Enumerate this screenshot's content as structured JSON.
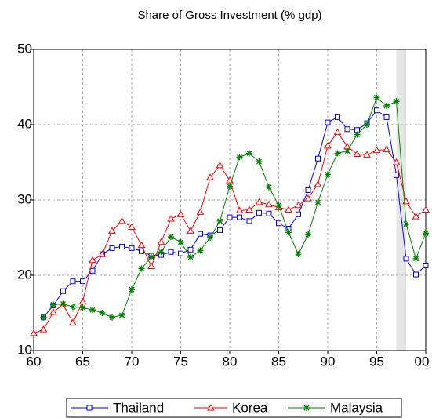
{
  "chart_data": {
    "type": "line",
    "title": "Share of Gross Investment (% gdp)",
    "x": [
      1960,
      1961,
      1962,
      1963,
      1964,
      1965,
      1966,
      1967,
      1968,
      1969,
      1970,
      1971,
      1972,
      1973,
      1974,
      1975,
      1976,
      1977,
      1978,
      1979,
      1980,
      1981,
      1982,
      1983,
      1984,
      1985,
      1986,
      1987,
      1988,
      1989,
      1990,
      1991,
      1992,
      1993,
      1994,
      1995,
      1996,
      1997,
      1998,
      1999,
      2000
    ],
    "series": [
      {
        "name": "Thailand",
        "color": "#0000ff",
        "marker": "square",
        "values": [
          null,
          14.4,
          16.0,
          17.9,
          19.2,
          19.2,
          20.6,
          22.8,
          23.6,
          23.8,
          23.6,
          23.2,
          22.6,
          22.7,
          23.1,
          22.9,
          23.4,
          25.5,
          25.3,
          26.0,
          27.7,
          27.7,
          27.2,
          28.3,
          28.2,
          26.9,
          26.2,
          28.1,
          31.3,
          35.5,
          40.3,
          41.0,
          39.4,
          39.3,
          40.2,
          41.9,
          41.0,
          33.3,
          22.2,
          20.1,
          21.3
        ]
      },
      {
        "name": "Korea",
        "color": "#ff0000",
        "marker": "triangle",
        "values": [
          12.3,
          12.8,
          15.1,
          16.1,
          13.7,
          16.5,
          22.0,
          22.8,
          25.9,
          27.2,
          26.4,
          24.0,
          21.2,
          24.4,
          27.5,
          28.1,
          25.9,
          28.4,
          33.0,
          34.6,
          32.6,
          28.6,
          28.7,
          29.7,
          29.4,
          29.0,
          28.7,
          29.3,
          30.2,
          32.1,
          37.2,
          39.0,
          37.1,
          36.1,
          36.0,
          36.6,
          36.7,
          35.0,
          29.8,
          27.8,
          28.7
        ]
      },
      {
        "name": "Malaysia",
        "color": "#008000",
        "marker": "star",
        "values": [
          null,
          14.4,
          16.1,
          16.2,
          15.8,
          15.7,
          15.4,
          15.0,
          14.4,
          14.7,
          18.1,
          20.9,
          22.4,
          23.1,
          25.1,
          24.4,
          22.4,
          23.3,
          25.0,
          27.2,
          31.8,
          35.7,
          36.2,
          35.1,
          31.7,
          29.3,
          25.7,
          22.8,
          25.4,
          29.7,
          33.4,
          36.2,
          36.5,
          38.7,
          40.0,
          43.6,
          42.5,
          43.1,
          26.8,
          22.2,
          25.6
        ]
      }
    ],
    "xlim": [
      1960,
      2000
    ],
    "xticks": [
      {
        "value": 1960,
        "label": "60"
      },
      {
        "value": 1965,
        "label": "65"
      },
      {
        "value": 1970,
        "label": "70"
      },
      {
        "value": 1975,
        "label": "75"
      },
      {
        "value": 1980,
        "label": "80"
      },
      {
        "value": 1985,
        "label": "85"
      },
      {
        "value": 1990,
        "label": "90"
      },
      {
        "value": 1995,
        "label": "95"
      },
      {
        "value": 2000,
        "label": "00"
      }
    ],
    "ylim": [
      10,
      50
    ],
    "yticks": [
      10,
      20,
      30,
      40,
      50
    ],
    "shade": [
      1997,
      1998
    ],
    "grid": true,
    "legend": "bottom"
  }
}
